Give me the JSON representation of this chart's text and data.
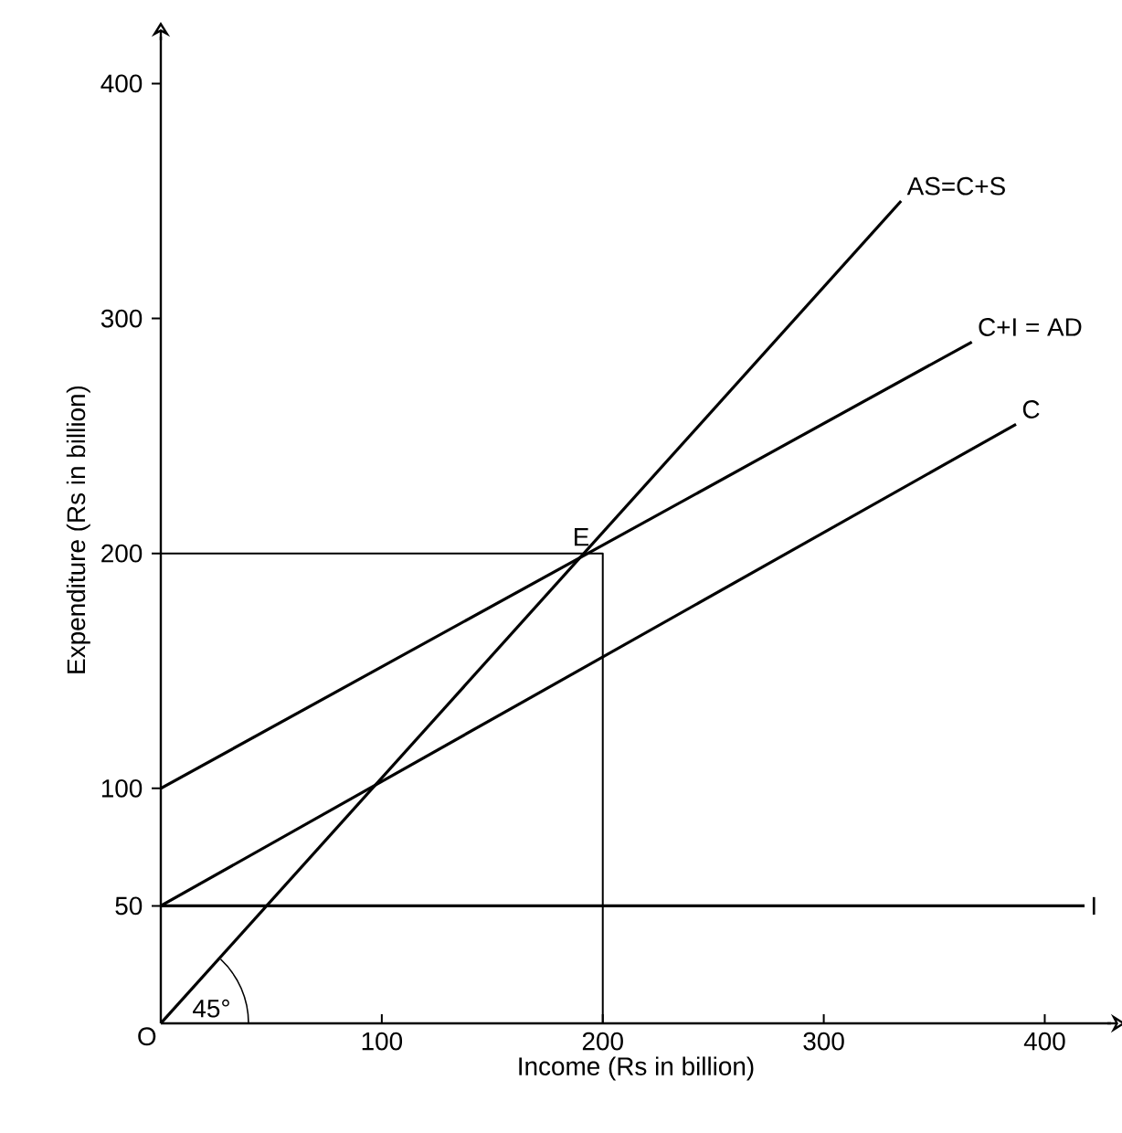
{
  "chart_data": {
    "type": "line",
    "xlabel": "Income (Rs in billion)",
    "ylabel": "Expenditure (Rs in billion)",
    "xlim": [
      0,
      430
    ],
    "ylim": [
      0,
      420
    ],
    "xticks": [
      100,
      200,
      300,
      400
    ],
    "yticks": [
      50,
      100,
      200,
      300,
      400
    ],
    "series": [
      {
        "name": "AS=C+S",
        "color": "#000000",
        "x": [
          0,
          335
        ],
        "values": [
          0,
          350
        ]
      },
      {
        "name": "C+I = AD",
        "color": "#000000",
        "x": [
          0,
          367
        ],
        "values": [
          100,
          290
        ]
      },
      {
        "name": "C",
        "color": "#000000",
        "x": [
          0,
          387
        ],
        "values": [
          50,
          255
        ]
      },
      {
        "name": "I",
        "color": "#000000",
        "x": [
          0,
          418
        ],
        "values": [
          50,
          50
        ]
      },
      {
        "color": "#000000",
        "x": [
          0,
          200,
          200
        ],
        "values": [
          200,
          200,
          0
        ]
      }
    ],
    "annotations": [
      "O",
      {
        "text": "E",
        "x": 200,
        "y": 200
      },
      {
        "text": "45°",
        "x": 0,
        "y": 0
      }
    ],
    "legend": false,
    "marker": "none",
    "line_style": "solid"
  }
}
